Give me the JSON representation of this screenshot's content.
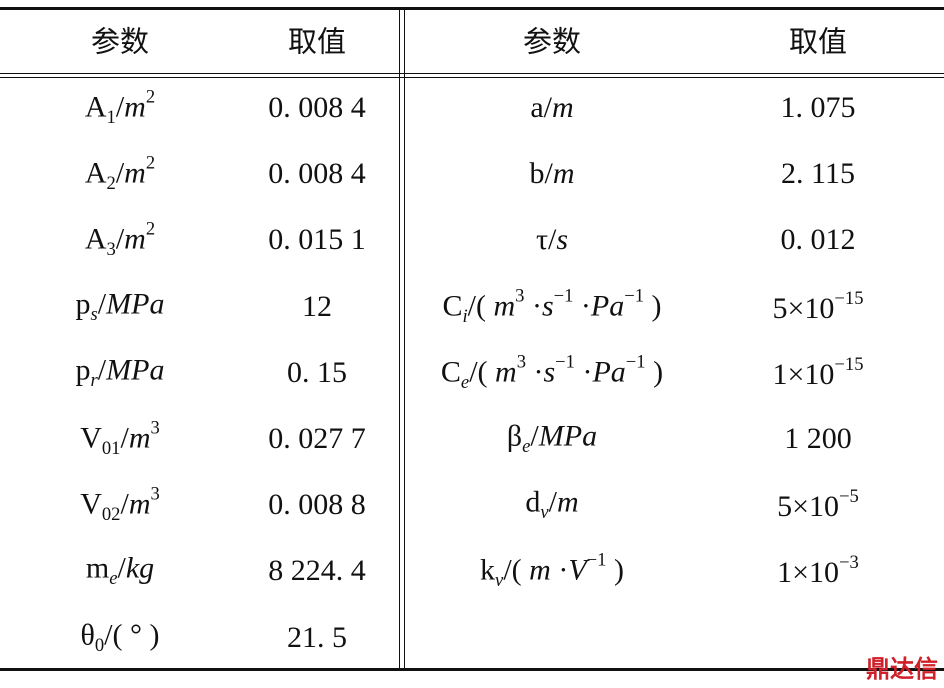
{
  "table": {
    "header": [
      "参数",
      "取值",
      "参数",
      "取值"
    ],
    "rows": [
      [
        [
          {
            "text": "A"
          },
          {
            "text": "1",
            "style": "sub"
          },
          {
            "text": "/"
          },
          {
            "text": "m",
            "style": "i"
          },
          {
            "text": "2",
            "style": "sup"
          }
        ],
        "0. 008 4",
        [
          {
            "text": "a"
          },
          {
            "text": "/"
          },
          {
            "text": "m",
            "style": "i"
          }
        ],
        "1. 075"
      ],
      [
        [
          {
            "text": "A"
          },
          {
            "text": "2",
            "style": "sub"
          },
          {
            "text": "/"
          },
          {
            "text": "m",
            "style": "i"
          },
          {
            "text": "2",
            "style": "sup"
          }
        ],
        "0. 008 4",
        [
          {
            "text": "b"
          },
          {
            "text": "/"
          },
          {
            "text": "m",
            "style": "i"
          }
        ],
        "2. 115"
      ],
      [
        [
          {
            "text": "A"
          },
          {
            "text": "3",
            "style": "sub"
          },
          {
            "text": "/"
          },
          {
            "text": "m",
            "style": "i"
          },
          {
            "text": "2",
            "style": "sup"
          }
        ],
        "0. 015 1",
        [
          {
            "text": "τ"
          },
          {
            "text": "/"
          },
          {
            "text": "s",
            "style": "i"
          }
        ],
        "0. 012"
      ],
      [
        [
          {
            "text": "p"
          },
          {
            "text": "s",
            "style": "isub"
          },
          {
            "text": "/"
          },
          {
            "text": "MPa",
            "style": "i"
          }
        ],
        "12",
        [
          {
            "text": "C"
          },
          {
            "text": "i",
            "style": "isub"
          },
          {
            "text": "/( "
          },
          {
            "text": "m",
            "style": "i"
          },
          {
            "text": "3",
            "style": "sup"
          },
          {
            "text": " ·"
          },
          {
            "text": "s",
            "style": "i"
          },
          {
            "text": "−1",
            "style": "sup"
          },
          {
            "text": " ·"
          },
          {
            "text": "Pa",
            "style": "i"
          },
          {
            "text": "−1",
            "style": "sup"
          },
          {
            "text": " )"
          }
        ],
        [
          {
            "text": "5×10"
          },
          {
            "text": "−15",
            "style": "sup"
          }
        ]
      ],
      [
        [
          {
            "text": "p"
          },
          {
            "text": "r",
            "style": "isub"
          },
          {
            "text": "/"
          },
          {
            "text": "MPa",
            "style": "i"
          }
        ],
        "0. 15",
        [
          {
            "text": "C"
          },
          {
            "text": "e",
            "style": "isub"
          },
          {
            "text": "/( "
          },
          {
            "text": "m",
            "style": "i"
          },
          {
            "text": "3",
            "style": "sup"
          },
          {
            "text": " ·"
          },
          {
            "text": "s",
            "style": "i"
          },
          {
            "text": "−1",
            "style": "sup"
          },
          {
            "text": " ·"
          },
          {
            "text": "Pa",
            "style": "i"
          },
          {
            "text": "−1",
            "style": "sup"
          },
          {
            "text": " )"
          }
        ],
        [
          {
            "text": "1×10"
          },
          {
            "text": "−15",
            "style": "sup"
          }
        ]
      ],
      [
        [
          {
            "text": "V"
          },
          {
            "text": "01",
            "style": "sub"
          },
          {
            "text": "/"
          },
          {
            "text": "m",
            "style": "i"
          },
          {
            "text": "3",
            "style": "sup"
          }
        ],
        "0. 027 7",
        [
          {
            "text": "β"
          },
          {
            "text": "e",
            "style": "isub"
          },
          {
            "text": "/"
          },
          {
            "text": "MPa",
            "style": "i"
          }
        ],
        "1 200"
      ],
      [
        [
          {
            "text": "V"
          },
          {
            "text": "02",
            "style": "sub"
          },
          {
            "text": "/"
          },
          {
            "text": "m",
            "style": "i"
          },
          {
            "text": "3",
            "style": "sup"
          }
        ],
        "0. 008 8",
        [
          {
            "text": "d"
          },
          {
            "text": "v",
            "style": "isub"
          },
          {
            "text": "/"
          },
          {
            "text": "m",
            "style": "i"
          }
        ],
        [
          {
            "text": "5×10"
          },
          {
            "text": "−5",
            "style": "sup"
          }
        ]
      ],
      [
        [
          {
            "text": "m"
          },
          {
            "text": "e",
            "style": "isub"
          },
          {
            "text": "/"
          },
          {
            "text": "kg",
            "style": "i"
          }
        ],
        "8 224. 4",
        [
          {
            "text": "k"
          },
          {
            "text": "v",
            "style": "isub"
          },
          {
            "text": "/( "
          },
          {
            "text": "m",
            "style": "i"
          },
          {
            "text": " ·"
          },
          {
            "text": "V",
            "style": "i"
          },
          {
            "text": "−1",
            "style": "sup"
          },
          {
            "text": " )"
          }
        ],
        [
          {
            "text": "1×10"
          },
          {
            "text": "−3",
            "style": "sup"
          }
        ]
      ],
      [
        [
          {
            "text": "θ"
          },
          {
            "text": "0",
            "style": "sub"
          },
          {
            "text": "/( ° )"
          }
        ],
        "21. 5"
      ]
    ]
  },
  "watermark": "鼎达信"
}
